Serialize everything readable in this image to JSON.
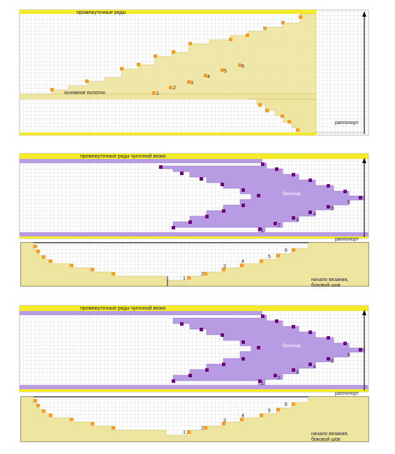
{
  "colors": {
    "grid_line": "#c8c8c8",
    "yellow_band": "#f2ea2a",
    "yellow_fill": "#eee6a0",
    "orange": "#f19c2e",
    "purple_fill": "#b79be3",
    "purple_dark": "#6a0a78",
    "frame": "#222222",
    "white": "#ffffff"
  },
  "panel1": {
    "top_label": "промежуточные ряды",
    "body_label": "основное полотно",
    "side_label": "раппопорт",
    "step_numbers": [
      "1",
      "2",
      "3",
      "4",
      "5",
      "6"
    ]
  },
  "panel2": {
    "top_label": "промежуточные ряды чулочной вязки",
    "center_label": "бочонок",
    "side_label": "раппопорт",
    "bottom_label_line1": "начало вязания,",
    "bottom_label_line2": "боковой шов",
    "upper_step_numbers": [
      "1",
      "2",
      "3",
      "4",
      "5",
      "6"
    ],
    "lower_step_numbers": [
      "1",
      "2",
      "3",
      "4",
      "5",
      "6"
    ]
  },
  "panel3": {
    "top_label": "промежуточные ряды чулочной вязки",
    "center_label": "бочонок",
    "side_label": "раппопорт",
    "bottom_label_line1": "начало вязания,",
    "bottom_label_line2": "боковой шов",
    "upper_step_numbers": [
      "1",
      "2",
      "3",
      "4",
      "5",
      "6"
    ],
    "lower_step_numbers": [
      "1",
      "2",
      "3",
      "4",
      "5",
      "6"
    ]
  }
}
